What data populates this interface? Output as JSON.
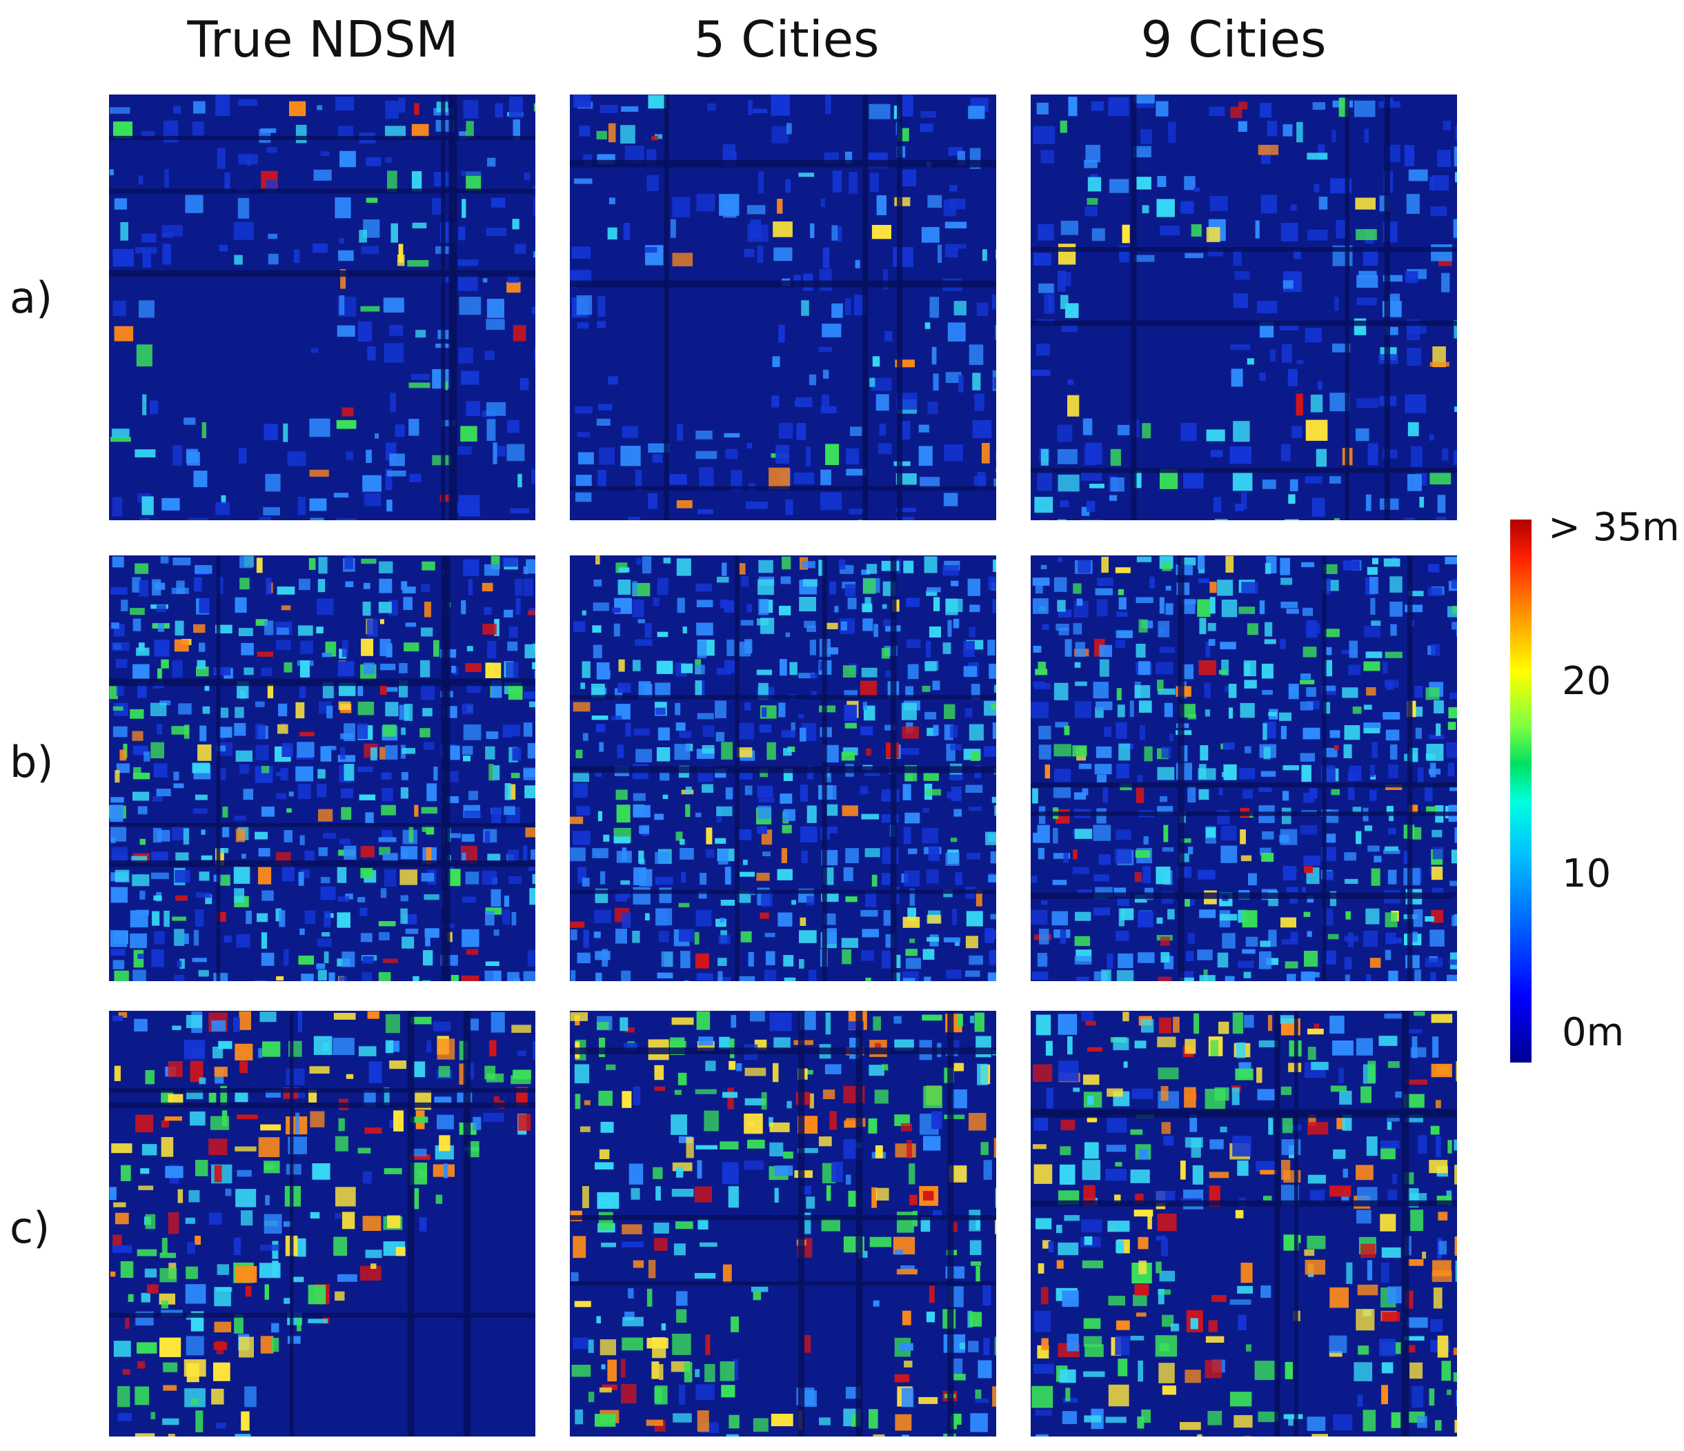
{
  "columns": [
    "True NDSM",
    "5 Cities",
    "9 Cities"
  ],
  "rows": [
    "a)",
    "b)",
    "c)"
  ],
  "colorbar": {
    "labels": [
      "> 35m",
      "20",
      "10",
      "0m"
    ],
    "colors": [
      "#00008f",
      "#0000ff",
      "#00bfff",
      "#00e060",
      "#ffff00",
      "#ff9000",
      "#b00000"
    ]
  },
  "colors": {
    "background": "#0b1a8a",
    "road": "#06105e",
    "low": "#1436d6",
    "mid": "#2f8cff",
    "cyan": "#37d8f5",
    "green": "#39e05a",
    "yellow": "#ffe63a",
    "orange": "#ff8c1a",
    "red": "#d0151b"
  }
}
